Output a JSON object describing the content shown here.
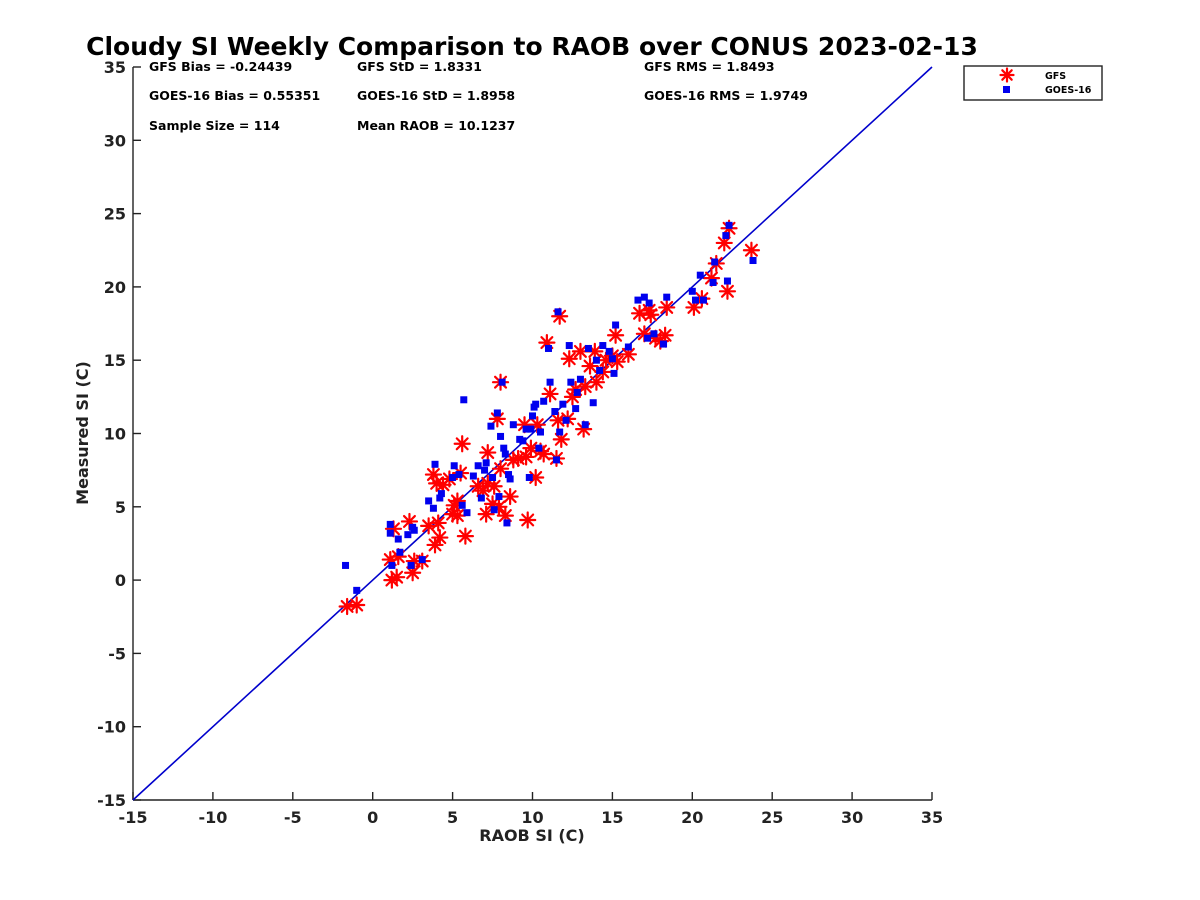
{
  "chart_data": {
    "type": "scatter",
    "title": "Cloudy SI Weekly Comparison to RAOB over CONUS 2023-02-13",
    "xlabel": "RAOB SI (C)",
    "ylabel": "Measured SI (C)",
    "xlim": [
      -15,
      35
    ],
    "ylim": [
      -15,
      35
    ],
    "xticks": [
      "-15",
      "-10",
      "-5",
      "0",
      "5",
      "10",
      "15",
      "20",
      "25",
      "30",
      "35"
    ],
    "yticks": [
      "-15",
      "-10",
      "-5",
      "0",
      "5",
      "10",
      "15",
      "20",
      "25",
      "30",
      "35"
    ],
    "grid": false,
    "legend_position": "top-right, outside plot",
    "stats": {
      "gfs_bias": "GFS Bias = -0.24439",
      "gfs_std": "GFS StD = 1.8331",
      "gfs_rms": "GFS RMS = 1.8493",
      "goes_bias": "GOES-16 Bias = 0.55351",
      "goes_std": "GOES-16 StD = 1.8958",
      "goes_rms": "GOES-16 RMS = 1.9749",
      "sample_size": "Sample Size = 114",
      "mean_raob": "Mean RAOB = 10.1237"
    },
    "reference_line": {
      "from": [
        -15,
        -15
      ],
      "to": [
        35,
        35
      ],
      "color": "#0000cc"
    },
    "series": [
      {
        "name": "GFS",
        "marker": "asterisk",
        "color": "#ff0000",
        "points": [
          [
            -1.6,
            -1.8
          ],
          [
            -1.0,
            -1.7
          ],
          [
            1.2,
            0.0
          ],
          [
            1.5,
            0.2
          ],
          [
            1.1,
            1.4
          ],
          [
            1.6,
            1.6
          ],
          [
            1.3,
            3.5
          ],
          [
            2.3,
            4.0
          ],
          [
            2.5,
            0.5
          ],
          [
            2.6,
            1.3
          ],
          [
            3.1,
            1.3
          ],
          [
            3.5,
            3.7
          ],
          [
            3.8,
            7.2
          ],
          [
            3.9,
            2.4
          ],
          [
            4.0,
            6.6
          ],
          [
            4.1,
            3.9
          ],
          [
            4.2,
            2.9
          ],
          [
            4.4,
            6.5
          ],
          [
            4.8,
            6.9
          ],
          [
            5.0,
            4.5
          ],
          [
            5.1,
            5.1
          ],
          [
            5.3,
            4.4
          ],
          [
            5.3,
            5.4
          ],
          [
            5.5,
            7.3
          ],
          [
            5.6,
            9.3
          ],
          [
            5.8,
            3.0
          ],
          [
            6.6,
            6.4
          ],
          [
            6.9,
            6.1
          ],
          [
            7.1,
            4.5
          ],
          [
            7.2,
            6.6
          ],
          [
            7.2,
            8.7
          ],
          [
            7.5,
            5.2
          ],
          [
            7.6,
            6.4
          ],
          [
            7.8,
            11.0
          ],
          [
            7.9,
            5.0
          ],
          [
            8.0,
            7.6
          ],
          [
            8.0,
            13.5
          ],
          [
            8.3,
            4.4
          ],
          [
            8.6,
            5.7
          ],
          [
            8.8,
            8.2
          ],
          [
            9.1,
            8.3
          ],
          [
            9.5,
            10.6
          ],
          [
            9.6,
            8.4
          ],
          [
            9.7,
            4.1
          ],
          [
            9.9,
            9.0
          ],
          [
            10.2,
            7.0
          ],
          [
            10.3,
            10.6
          ],
          [
            10.5,
            8.8
          ],
          [
            10.7,
            8.6
          ],
          [
            10.9,
            16.2
          ],
          [
            11.1,
            12.7
          ],
          [
            11.5,
            8.3
          ],
          [
            11.6,
            10.9
          ],
          [
            11.7,
            18.0
          ],
          [
            11.8,
            9.6
          ],
          [
            12.2,
            11.0
          ],
          [
            12.3,
            15.1
          ],
          [
            12.5,
            12.5
          ],
          [
            12.7,
            13.0
          ],
          [
            13.0,
            15.6
          ],
          [
            13.2,
            10.3
          ],
          [
            13.3,
            13.2
          ],
          [
            13.6,
            14.6
          ],
          [
            13.9,
            15.6
          ],
          [
            14.0,
            13.5
          ],
          [
            14.4,
            14.2
          ],
          [
            14.6,
            15.0
          ],
          [
            15.0,
            15.3
          ],
          [
            15.2,
            16.7
          ],
          [
            15.3,
            14.9
          ],
          [
            16.0,
            15.4
          ],
          [
            16.7,
            18.2
          ],
          [
            17.0,
            16.8
          ],
          [
            17.3,
            18.4
          ],
          [
            17.4,
            18.1
          ],
          [
            17.7,
            16.5
          ],
          [
            18.0,
            16.3
          ],
          [
            18.3,
            16.7
          ],
          [
            18.4,
            18.6
          ],
          [
            20.1,
            18.6
          ],
          [
            20.6,
            19.2
          ],
          [
            21.2,
            20.6
          ],
          [
            21.5,
            21.6
          ],
          [
            22.0,
            23.0
          ],
          [
            22.2,
            19.7
          ],
          [
            22.3,
            24.0
          ],
          [
            23.7,
            22.5
          ]
        ]
      },
      {
        "name": "GOES-16",
        "marker": "square",
        "color": "#0000ee",
        "points": [
          [
            -1.7,
            1.0
          ],
          [
            -1.0,
            -0.7
          ],
          [
            1.1,
            3.8
          ],
          [
            1.1,
            3.2
          ],
          [
            1.2,
            1.0
          ],
          [
            1.6,
            2.8
          ],
          [
            1.7,
            1.9
          ],
          [
            2.2,
            3.1
          ],
          [
            2.4,
            1.0
          ],
          [
            2.5,
            3.6
          ],
          [
            2.6,
            3.4
          ],
          [
            3.1,
            1.4
          ],
          [
            3.5,
            5.4
          ],
          [
            3.8,
            4.9
          ],
          [
            3.9,
            7.9
          ],
          [
            4.2,
            5.6
          ],
          [
            4.3,
            5.9
          ],
          [
            5.0,
            7.0
          ],
          [
            5.1,
            7.8
          ],
          [
            5.4,
            7.2
          ],
          [
            5.6,
            5.1
          ],
          [
            5.7,
            12.3
          ],
          [
            5.9,
            4.6
          ],
          [
            6.3,
            7.1
          ],
          [
            6.6,
            7.8
          ],
          [
            6.8,
            5.6
          ],
          [
            7.0,
            7.5
          ],
          [
            7.1,
            8.0
          ],
          [
            7.4,
            10.5
          ],
          [
            7.5,
            7.0
          ],
          [
            7.6,
            4.8
          ],
          [
            7.8,
            11.4
          ],
          [
            7.9,
            5.7
          ],
          [
            8.0,
            9.8
          ],
          [
            8.1,
            13.5
          ],
          [
            8.2,
            9.0
          ],
          [
            8.3,
            8.6
          ],
          [
            8.4,
            3.9
          ],
          [
            8.5,
            7.2
          ],
          [
            8.6,
            6.9
          ],
          [
            8.8,
            10.6
          ],
          [
            9.2,
            9.6
          ],
          [
            9.4,
            9.5
          ],
          [
            9.6,
            10.3
          ],
          [
            9.8,
            7.0
          ],
          [
            9.9,
            10.3
          ],
          [
            10.0,
            11.2
          ],
          [
            10.1,
            11.8
          ],
          [
            10.2,
            12.0
          ],
          [
            10.4,
            9.0
          ],
          [
            10.5,
            10.1
          ],
          [
            10.7,
            12.2
          ],
          [
            11.0,
            15.8
          ],
          [
            11.1,
            13.5
          ],
          [
            11.4,
            11.5
          ],
          [
            11.5,
            8.2
          ],
          [
            11.6,
            18.3
          ],
          [
            11.7,
            10.1
          ],
          [
            11.9,
            12.0
          ],
          [
            12.1,
            10.9
          ],
          [
            12.3,
            16.0
          ],
          [
            12.4,
            13.5
          ],
          [
            12.7,
            11.7
          ],
          [
            12.8,
            12.8
          ],
          [
            13.0,
            13.7
          ],
          [
            13.3,
            10.6
          ],
          [
            13.5,
            15.8
          ],
          [
            13.8,
            12.1
          ],
          [
            14.0,
            15.0
          ],
          [
            14.2,
            14.3
          ],
          [
            14.4,
            16.0
          ],
          [
            14.8,
            15.6
          ],
          [
            15.0,
            15.1
          ],
          [
            15.1,
            14.1
          ],
          [
            15.2,
            17.4
          ],
          [
            16.0,
            15.9
          ],
          [
            16.6,
            19.1
          ],
          [
            17.0,
            19.3
          ],
          [
            17.2,
            16.5
          ],
          [
            17.3,
            18.9
          ],
          [
            17.6,
            16.8
          ],
          [
            18.2,
            16.1
          ],
          [
            18.4,
            19.3
          ],
          [
            20.0,
            19.7
          ],
          [
            20.2,
            19.1
          ],
          [
            20.5,
            20.8
          ],
          [
            20.7,
            19.1
          ],
          [
            21.3,
            20.3
          ],
          [
            21.4,
            21.7
          ],
          [
            22.1,
            23.5
          ],
          [
            22.2,
            20.4
          ],
          [
            22.3,
            24.2
          ],
          [
            23.8,
            21.8
          ]
        ]
      }
    ]
  }
}
